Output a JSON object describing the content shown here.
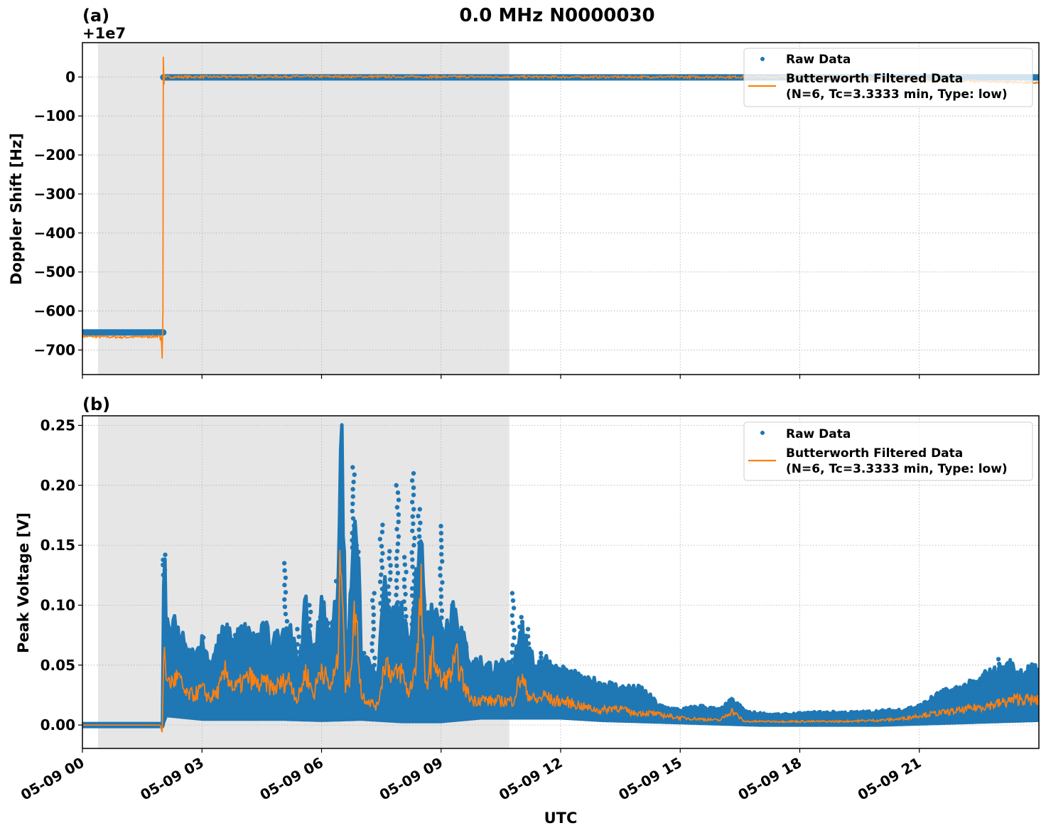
{
  "figure": {
    "title": "0.0 MHz N0000030",
    "xlabel": "UTC",
    "xtick_labels": [
      "05-09 00",
      "05-09 03",
      "05-09 06",
      "05-09 09",
      "05-09 12",
      "05-09 15",
      "05-09 18",
      "05-09 21"
    ],
    "xtick_hours": [
      0,
      3,
      6,
      9,
      12,
      15,
      18,
      21
    ],
    "x_range_hours": [
      0,
      24
    ],
    "shaded_region_hours": [
      0.39,
      10.71
    ],
    "shaded_color": "#e6e6e6",
    "colors": {
      "raw": "#1f77b4",
      "filtered": "#ff7f0e",
      "grid": "#b0b0b0"
    }
  },
  "panel_a": {
    "label": "(a)",
    "offset_text": "+1e7",
    "ylabel": "Doppler Shift [Hz]",
    "ytick_values": [
      0,
      -100,
      -200,
      -300,
      -400,
      -500,
      -600,
      -700
    ],
    "ytick_labels": [
      "0",
      "−100",
      "−200",
      "−300",
      "−400",
      "−500",
      "−600",
      "−700"
    ],
    "ylim": [
      -763,
      88
    ],
    "legend": {
      "raw": "Raw Data",
      "filtered_line1": "Butterworth Filtered Data",
      "filtered_line2": "(N=6, Tc=3.3333 min, Type: low)"
    }
  },
  "panel_b": {
    "label": "(b)",
    "ylabel": "Peak Voltage [V]",
    "ytick_values": [
      0.0,
      0.05,
      0.1,
      0.15,
      0.2,
      0.25
    ],
    "ytick_labels": [
      "0.00",
      "0.05",
      "0.10",
      "0.15",
      "0.20",
      "0.25"
    ],
    "ylim": [
      -0.0195,
      0.258
    ],
    "legend": {
      "raw": "Raw Data",
      "filtered_line1": "Butterworth Filtered Data",
      "filtered_line2": "(N=6, Tc=3.3333 min, Type: low)"
    }
  },
  "chart_data": [
    {
      "type": "line",
      "title": "0.0 MHz N0000030",
      "panel": "(a)",
      "xlabel": "UTC",
      "ylabel": "Doppler Shift [Hz]",
      "y_offset": 10000000,
      "xlim_hours": [
        0,
        24
      ],
      "ylim": [
        -763,
        88
      ],
      "grid": true,
      "legend_position": "upper right",
      "series": [
        {
          "name": "Raw Data",
          "style": "scatter",
          "x_hours": [
            0.0,
            2.02,
            2.04,
            24.0
          ],
          "values": [
            -655,
            -655,
            -2,
            -2
          ]
        },
        {
          "name": "Butterworth Filtered Data (N=6, Tc=3.3333 min, Type: low)",
          "style": "line",
          "x_hours": [
            0.0,
            1.0,
            1.95,
            2.0,
            2.02,
            2.04,
            2.06,
            2.1,
            6.0,
            12.0,
            18.0,
            24.0
          ],
          "values": [
            -665,
            -667,
            -665,
            -720,
            52,
            -20,
            5,
            0,
            1,
            0,
            0,
            -15
          ]
        }
      ]
    },
    {
      "type": "line",
      "panel": "(b)",
      "xlabel": "UTC",
      "ylabel": "Peak Voltage [V]",
      "xlim_hours": [
        0,
        24
      ],
      "ylim": [
        -0.0195,
        0.258
      ],
      "grid": true,
      "legend_position": "upper right",
      "series": [
        {
          "name": "Raw Data (upper envelope)",
          "style": "scatter",
          "x_hours": [
            0.0,
            2.0,
            2.05,
            2.1,
            2.3,
            2.6,
            3.0,
            3.2,
            3.5,
            3.8,
            4.0,
            4.3,
            4.6,
            4.9,
            5.1,
            5.4,
            5.7,
            6.0,
            6.2,
            6.4,
            6.5,
            6.6,
            6.8,
            6.9,
            7.1,
            7.3,
            7.5,
            7.7,
            7.9,
            8.1,
            8.3,
            8.45,
            8.6,
            8.8,
            9.0,
            9.3,
            9.6,
            9.9,
            10.2,
            10.5,
            10.8,
            11.0,
            11.2,
            11.5,
            11.7,
            11.9,
            12.2,
            12.6,
            13.0,
            13.5,
            14.0,
            14.5,
            15.0,
            15.5,
            16.0,
            16.3,
            16.7,
            17.5,
            18.5,
            19.5,
            20.5,
            21.0,
            21.5,
            22.0,
            22.5,
            23.0,
            23.5,
            24.0
          ],
          "values": [
            0.001,
            0.001,
            0.142,
            0.09,
            0.08,
            0.065,
            0.073,
            0.05,
            0.073,
            0.075,
            0.078,
            0.07,
            0.078,
            0.075,
            0.135,
            0.08,
            0.1,
            0.095,
            0.085,
            0.12,
            0.245,
            0.08,
            0.215,
            0.15,
            0.06,
            0.11,
            0.167,
            0.145,
            0.2,
            0.14,
            0.21,
            0.18,
            0.1,
            0.09,
            0.166,
            0.1,
            0.065,
            0.055,
            0.05,
            0.045,
            0.11,
            0.09,
            0.08,
            0.06,
            0.05,
            0.045,
            0.043,
            0.035,
            0.035,
            0.03,
            0.03,
            0.015,
            0.012,
            0.015,
            0.012,
            0.02,
            0.01,
            0.008,
            0.01,
            0.01,
            0.012,
            0.015,
            0.025,
            0.03,
            0.035,
            0.055,
            0.043,
            0.046
          ]
        },
        {
          "name": "Raw Data (lower envelope)",
          "style": "scatter",
          "x_hours": [
            0.0,
            2.0,
            2.1,
            3.0,
            4.0,
            5.0,
            6.0,
            7.0,
            8.0,
            9.0,
            10.0,
            11.0,
            12.0,
            13.0,
            14.0,
            15.0,
            16.0,
            17.0,
            18.0,
            19.0,
            20.0,
            21.0,
            22.0,
            23.0,
            24.0
          ],
          "values": [
            -0.001,
            -0.001,
            0.008,
            0.005,
            0.005,
            0.005,
            0.004,
            0.005,
            0.003,
            0.003,
            0.006,
            0.006,
            0.006,
            0.004,
            0.003,
            0.002,
            0.001,
            0.0,
            0.0,
            0.0,
            0.0,
            0.001,
            0.002,
            0.003,
            0.004
          ]
        },
        {
          "name": "Butterworth Filtered Data (N=6, Tc=3.3333 min, Type: low)",
          "style": "line",
          "x_hours": [
            0.0,
            1.95,
            2.0,
            2.05,
            2.1,
            2.2,
            2.4,
            2.6,
            2.8,
            3.0,
            3.2,
            3.4,
            3.6,
            3.8,
            4.0,
            4.2,
            4.4,
            4.6,
            4.8,
            5.0,
            5.2,
            5.4,
            5.6,
            5.8,
            6.0,
            6.2,
            6.4,
            6.5,
            6.6,
            6.7,
            6.85,
            7.0,
            7.2,
            7.4,
            7.6,
            7.8,
            8.0,
            8.2,
            8.4,
            8.5,
            8.6,
            8.8,
            9.0,
            9.2,
            9.4,
            9.6,
            9.8,
            10.0,
            10.2,
            10.5,
            10.8,
            11.0,
            11.2,
            11.4,
            11.6,
            11.8,
            12.0,
            12.3,
            12.6,
            13.0,
            13.4,
            13.8,
            14.2,
            14.6,
            15.0,
            15.5,
            16.0,
            16.3,
            16.6,
            17.0,
            18.0,
            19.0,
            20.0,
            20.5,
            21.0,
            21.5,
            22.0,
            22.5,
            23.0,
            23.5,
            24.0
          ],
          "values": [
            0.0,
            0.0,
            -0.006,
            0.072,
            0.038,
            0.035,
            0.04,
            0.025,
            0.025,
            0.03,
            0.022,
            0.028,
            0.045,
            0.03,
            0.035,
            0.04,
            0.033,
            0.035,
            0.03,
            0.035,
            0.038,
            0.02,
            0.045,
            0.025,
            0.05,
            0.03,
            0.05,
            0.162,
            0.03,
            0.04,
            0.098,
            0.025,
            0.02,
            0.015,
            0.055,
            0.04,
            0.045,
            0.025,
            0.06,
            0.11,
            0.03,
            0.06,
            0.035,
            0.04,
            0.055,
            0.03,
            0.02,
            0.022,
            0.02,
            0.02,
            0.02,
            0.04,
            0.025,
            0.02,
            0.025,
            0.02,
            0.02,
            0.018,
            0.015,
            0.012,
            0.015,
            0.01,
            0.01,
            0.008,
            0.006,
            0.005,
            0.004,
            0.012,
            0.003,
            0.003,
            0.003,
            0.003,
            0.004,
            0.005,
            0.008,
            0.01,
            0.012,
            0.015,
            0.018,
            0.022,
            0.02
          ]
        }
      ]
    }
  ]
}
